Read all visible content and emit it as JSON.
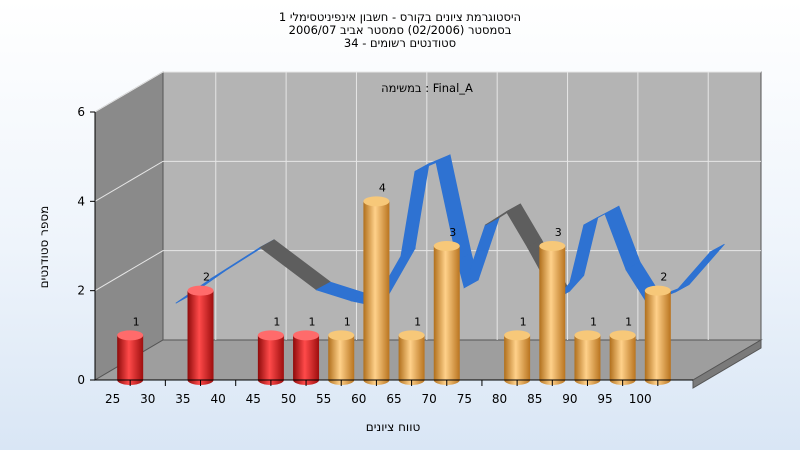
{
  "chart_data": {
    "type": "bar",
    "title_lines": [
      "היסטוגרמת ציונים בקורס - חשבון אינפיניטסימלי 1",
      "בסמסטר (02/2006) סמסטר אביב 2006/07",
      "סטודנטים רשומים - 34"
    ],
    "subtitle": "במשימה : Final_A",
    "xlabel": "טווח ציונים",
    "ylabel": "מספר סטודנטים",
    "ylim": [
      0,
      6
    ],
    "y_ticks": [
      "0",
      "2",
      "4",
      "6"
    ],
    "x_ticks": [
      "25",
      "30",
      "35",
      "40",
      "45",
      "50",
      "55",
      "60",
      "65",
      "70",
      "75",
      "80",
      "85",
      "90",
      "95",
      "100"
    ],
    "bars": [
      {
        "x": 27.5,
        "value": 1,
        "label": "1",
        "color": "red"
      },
      {
        "x": 37.5,
        "value": 2,
        "label": "2",
        "color": "red"
      },
      {
        "x": 47.5,
        "value": 1,
        "label": "1",
        "color": "red"
      },
      {
        "x": 52.5,
        "value": 1,
        "label": "1",
        "color": "red"
      },
      {
        "x": 57.5,
        "value": 1,
        "label": "1",
        "color": "orange"
      },
      {
        "x": 62.5,
        "value": 4,
        "label": "4",
        "color": "orange"
      },
      {
        "x": 67.5,
        "value": 1,
        "label": "1",
        "color": "orange"
      },
      {
        "x": 72.5,
        "value": 3,
        "label": "3",
        "color": "orange"
      },
      {
        "x": 82.5,
        "value": 1,
        "label": "1",
        "color": "orange"
      },
      {
        "x": 87.5,
        "value": 3,
        "label": "3",
        "color": "orange"
      },
      {
        "x": 92.5,
        "value": 1,
        "label": "1",
        "color": "orange"
      },
      {
        "x": 97.5,
        "value": 1,
        "label": "1",
        "color": "orange"
      },
      {
        "x": 102.5,
        "value": 2,
        "label": "2",
        "color": "orange"
      }
    ],
    "ribbon_points": [
      {
        "x": 30,
        "y": 1.45
      },
      {
        "x": 35,
        "y": 2.0
      },
      {
        "x": 42,
        "y": 2.7
      },
      {
        "x": 50,
        "y": 1.75
      },
      {
        "x": 55,
        "y": 1.5
      },
      {
        "x": 58,
        "y": 1.4
      },
      {
        "x": 62,
        "y": 2.5
      },
      {
        "x": 64,
        "y": 4.4
      },
      {
        "x": 67,
        "y": 4.6
      },
      {
        "x": 70,
        "y": 2.4
      },
      {
        "x": 71,
        "y": 1.8
      },
      {
        "x": 74,
        "y": 3.2
      },
      {
        "x": 77,
        "y": 3.5
      },
      {
        "x": 80,
        "y": 2.7
      },
      {
        "x": 84,
        "y": 1.55
      },
      {
        "x": 86,
        "y": 1.9
      },
      {
        "x": 88,
        "y": 3.2
      },
      {
        "x": 91,
        "y": 3.45
      },
      {
        "x": 94,
        "y": 2.2
      },
      {
        "x": 97,
        "y": 1.45
      },
      {
        "x": 101,
        "y": 1.7
      },
      {
        "x": 106,
        "y": 2.6
      }
    ],
    "colors": {
      "red": "#e11a1a",
      "orange": "#e9a23c",
      "ribbon_blue": "#2e72d2",
      "ribbon_gray": "#5e5e5e",
      "back_wall": "#b4b4b4",
      "side_wall": "#8a8a8a",
      "floor": "#9e9e9e"
    },
    "grid": true
  }
}
